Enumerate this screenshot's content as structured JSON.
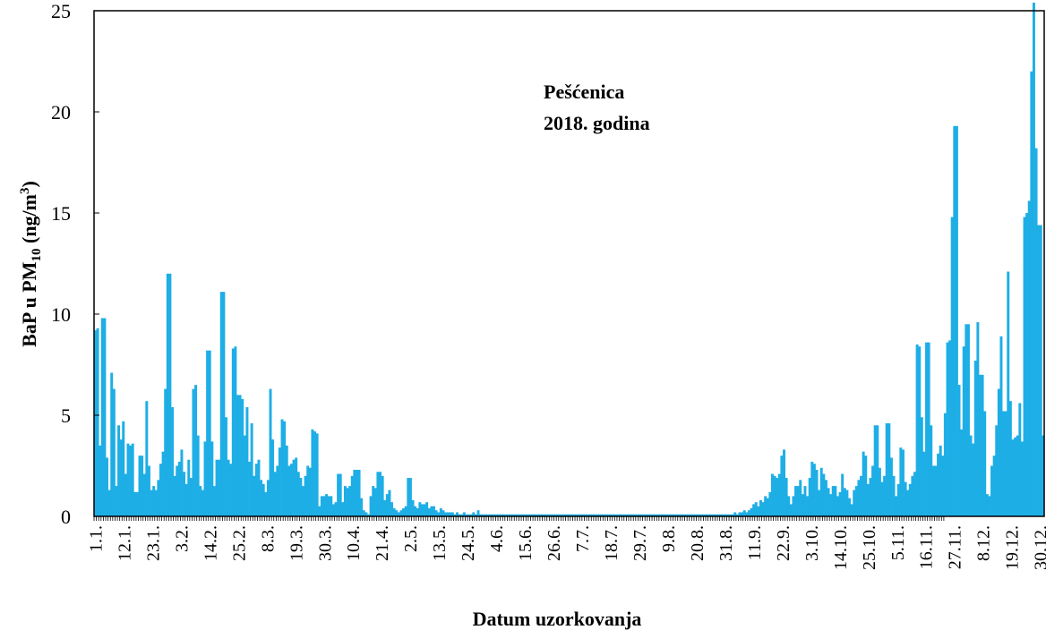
{
  "chart_data": {
    "type": "bar",
    "annotation_lines": [
      "Pešćenica",
      "2018. godina"
    ],
    "xlabel": "Datum uzorkovanja",
    "ylabel": {
      "prefix": "BaP u PM",
      "sub": "10",
      "unit_prefix": " (ng/m",
      "unit_sup": "3",
      "unit_suffix": ")"
    },
    "ylim": [
      0,
      25
    ],
    "yticks": [
      0,
      5,
      10,
      15,
      20,
      25
    ],
    "xlim": [
      1,
      365
    ],
    "x_tick_labels": [
      "1.1.",
      "12.1.",
      "23.1.",
      "3.2.",
      "14.2.",
      "25.2.",
      "8.3.",
      "19.3.",
      "30.3.",
      "10.4.",
      "21.4.",
      "2.5.",
      "13.5.",
      "24.5.",
      "4.6.",
      "15.6.",
      "26.6.",
      "7.7.",
      "18.7.",
      "29.7.",
      "9.8.",
      "20.8.",
      "31.8.",
      "11.9.",
      "22.9.",
      "3.10.",
      "14.10.",
      "25.10.",
      "5.11.",
      "16.11.",
      "27.11.",
      "8.12.",
      "19.12.",
      "30.12."
    ],
    "x_tick_days": [
      1,
      12,
      23,
      34,
      45,
      56,
      67,
      78,
      89,
      100,
      111,
      122,
      133,
      144,
      155,
      166,
      177,
      188,
      199,
      210,
      221,
      232,
      243,
      254,
      265,
      276,
      287,
      298,
      309,
      320,
      331,
      342,
      353,
      364
    ],
    "color": "#1eaee6",
    "values": [
      9.2,
      9.3,
      3.5,
      9.8,
      9.8,
      2.9,
      1.3,
      7.1,
      6.3,
      1.5,
      4.5,
      3.8,
      4.7,
      2.1,
      3.6,
      3.5,
      3.6,
      1.2,
      1.2,
      3.0,
      3.0,
      2.1,
      5.7,
      2.5,
      1.3,
      1.5,
      1.3,
      1.8,
      2.6,
      3.2,
      6.3,
      12.0,
      12.0,
      5.4,
      2.0,
      2.5,
      2.7,
      3.3,
      2.2,
      1.6,
      2.8,
      1.9,
      6.3,
      6.5,
      4.0,
      1.5,
      1.3,
      3.7,
      8.2,
      8.2,
      3.7,
      1.5,
      2.8,
      2.8,
      11.1,
      11.1,
      4.9,
      2.8,
      2.6,
      8.3,
      8.4,
      6.0,
      6.0,
      5.8,
      4.0,
      5.4,
      2.7,
      4.6,
      2.0,
      2.6,
      2.8,
      1.8,
      1.6,
      1.2,
      1.8,
      6.3,
      3.8,
      2.2,
      2.5,
      3.4,
      4.8,
      4.7,
      3.5,
      2.5,
      2.6,
      2.8,
      2.9,
      2.2,
      1.9,
      1.5,
      2.0,
      2.5,
      2.4,
      4.3,
      4.2,
      4.1,
      0.5,
      1.0,
      1.0,
      1.1,
      1.0,
      1.0,
      0.6,
      0.7,
      2.1,
      2.1,
      0.7,
      1.5,
      1.4,
      1.5,
      2.0,
      2.3,
      2.3,
      2.3,
      0.9,
      0.3,
      0.2,
      0.1,
      1.0,
      1.5,
      1.4,
      2.2,
      2.2,
      2.0,
      0.8,
      1.1,
      1.3,
      0.7,
      0.4,
      0.3,
      0.2,
      0.3,
      0.4,
      0.5,
      1.9,
      1.9,
      0.8,
      0.5,
      0.4,
      0.7,
      0.6,
      0.6,
      0.7,
      0.4,
      0.5,
      0.5,
      0.3,
      0.2,
      0.4,
      0.3,
      0.2,
      0.2,
      0.2,
      0.2,
      0.1,
      0.2,
      0.1,
      0.1,
      0.2,
      0.1,
      0.1,
      0.1,
      0.2,
      0.1,
      0.3,
      0.1,
      0.1,
      0.1,
      0.1,
      0.1,
      0.1,
      0.1,
      0.1,
      0.1,
      0.1,
      0.1,
      0.1,
      0.1,
      0.1,
      0.1,
      0.1,
      0.1,
      0.1,
      0.1,
      0.1,
      0.1,
      0.1,
      0.1,
      0.1,
      0.1,
      0.1,
      0.1,
      0.1,
      0.1,
      0.1,
      0.1,
      0.1,
      0.1,
      0.1,
      0.1,
      0.1,
      0.1,
      0.1,
      0.1,
      0.1,
      0.1,
      0.1,
      0.1,
      0.1,
      0.1,
      0.1,
      0.1,
      0.1,
      0.1,
      0.1,
      0.1,
      0.1,
      0.1,
      0.1,
      0.1,
      0.1,
      0.1,
      0.1,
      0.1,
      0.1,
      0.1,
      0.1,
      0.1,
      0.1,
      0.1,
      0.1,
      0.1,
      0.1,
      0.1,
      0.1,
      0.1,
      0.1,
      0.1,
      0.1,
      0.1,
      0.1,
      0.1,
      0.1,
      0.1,
      0.1,
      0.1,
      0.1,
      0.1,
      0.1,
      0.1,
      0.1,
      0.1,
      0.1,
      0.1,
      0.1,
      0.1,
      0.1,
      0.1,
      0.1,
      0.1,
      0.1,
      0.1,
      0.1,
      0.1,
      0.1,
      0.1,
      0.1,
      0.1,
      0.1,
      0.1,
      0.1,
      0.1,
      0.1,
      0.1,
      0.2,
      0.1,
      0.2,
      0.2,
      0.3,
      0.2,
      0.3,
      0.4,
      0.6,
      0.7,
      0.5,
      0.8,
      0.7,
      1.0,
      0.9,
      1.2,
      2.1,
      2.0,
      1.9,
      2.1,
      3.0,
      3.3,
      1.9,
      1.0,
      0.6,
      1.0,
      1.5,
      1.5,
      1.8,
      1.1,
      1.5,
      1.0,
      1.9,
      2.7,
      2.6,
      2.3,
      1.3,
      2.4,
      2.1,
      1.8,
      1.4,
      1.1,
      1.5,
      1.5,
      1.0,
      1.2,
      2.1,
      1.4,
      1.3,
      0.9,
      0.6,
      1.3,
      1.5,
      1.8,
      2.0,
      3.2,
      3.0,
      1.6,
      1.9,
      2.5,
      4.5,
      4.5,
      2.4,
      1.7,
      2.0,
      4.6,
      4.6,
      2.9,
      2.0,
      1.0,
      1.6,
      3.4,
      3.3,
      1.7,
      1.3,
      1.6,
      2.0,
      2.2,
      8.5,
      8.4,
      4.9,
      3.2,
      8.6,
      8.6,
      4.5,
      2.5,
      2.5,
      3.1,
      3.5,
      3.0,
      5.1,
      8.6,
      8.7,
      14.8,
      19.3,
      19.3,
      6.5,
      4.3,
      8.4,
      9.5,
      9.5,
      4.0,
      3.6,
      7.7,
      9.6,
      7.0,
      7.0,
      5.2,
      1.1,
      1.0,
      2.5,
      3.0,
      4.5,
      6.3,
      8.9,
      5.2,
      5.2,
      12.1,
      5.7,
      3.8,
      3.9,
      4.0,
      5.6,
      3.7,
      14.8,
      15.0,
      15.6,
      22.0,
      25.4,
      18.2,
      14.4,
      14.4,
      4.0
    ]
  }
}
